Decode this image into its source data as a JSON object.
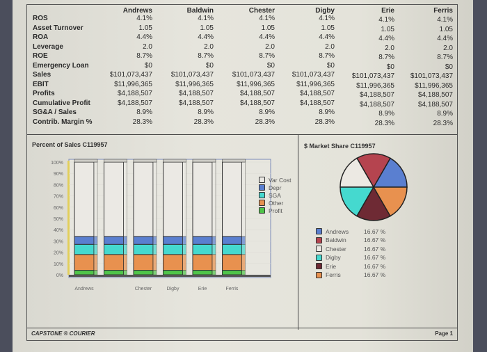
{
  "table": {
    "companies": [
      "Andrews",
      "Baldwin",
      "Chester",
      "Digby",
      "Erie",
      "Ferris"
    ],
    "rows": [
      {
        "label": "ROS",
        "values": [
          "4.1%",
          "4.1%",
          "4.1%",
          "4.1%",
          "4.1%",
          "4.1%"
        ]
      },
      {
        "label": "Asset Turnover",
        "values": [
          "1.05",
          "1.05",
          "1.05",
          "1.05",
          "1.05",
          "1.05"
        ]
      },
      {
        "label": "ROA",
        "values": [
          "4.4%",
          "4.4%",
          "4.4%",
          "4.4%",
          "4.4%",
          "4.4%"
        ]
      },
      {
        "label": "Leverage",
        "values": [
          "2.0",
          "2.0",
          "2.0",
          "2.0",
          "2.0",
          "2.0"
        ]
      },
      {
        "label": "ROE",
        "values": [
          "8.7%",
          "8.7%",
          "8.7%",
          "8.7%",
          "8.7%",
          "8.7%"
        ]
      },
      {
        "label": "Emergency Loan",
        "values": [
          "$0",
          "$0",
          "$0",
          "$0",
          "$0",
          "$0"
        ]
      },
      {
        "label": "Sales",
        "values": [
          "$101,073,437",
          "$101,073,437",
          "$101,073,437",
          "$101,073,437",
          "$101,073,437",
          "$101,073,437"
        ]
      },
      {
        "label": "EBIT",
        "values": [
          "$11,996,365",
          "$11,996,365",
          "$11,996,365",
          "$11,996,365",
          "$11,996,365",
          "$11,996,365"
        ]
      },
      {
        "label": "Profits",
        "values": [
          "$4,188,507",
          "$4,188,507",
          "$4,188,507",
          "$4,188,507",
          "$4,188,507",
          "$4,188,507"
        ]
      },
      {
        "label": "Cumulative Profit",
        "values": [
          "$4,188,507",
          "$4,188,507",
          "$4,188,507",
          "$4,188,507",
          "$4,188,507",
          "$4,188,507"
        ]
      },
      {
        "label": "SG&A / Sales",
        "values": [
          "8.9%",
          "8.9%",
          "8.9%",
          "8.9%",
          "8.9%",
          "8.9%"
        ]
      },
      {
        "label": "Contrib. Margin %",
        "values": [
          "28.3%",
          "28.3%",
          "28.3%",
          "28.3%",
          "28.3%",
          "28.3%"
        ]
      }
    ]
  },
  "chart_data": [
    {
      "type": "bar",
      "stacked": true,
      "title": "Percent of Sales  C119957",
      "categories": [
        "Andrews",
        "Baldwin",
        "Chester",
        "Digby",
        "Erie",
        "Ferris"
      ],
      "tick_labels": [
        "Andrews",
        "",
        "Chester",
        "Digby",
        "Erie",
        "Ferris"
      ],
      "yticks": [
        "0%",
        "10%",
        "20%",
        "30%",
        "40%",
        "50%",
        "60%",
        "70%",
        "80%",
        "90%",
        "100%"
      ],
      "ylim": [
        0,
        100
      ],
      "legend_position": "right",
      "series": [
        {
          "name": "Profit",
          "color": "#4fc44a",
          "values": [
            4,
            4,
            4,
            4,
            4,
            4
          ]
        },
        {
          "name": "Other",
          "color": "#e8914f",
          "values": [
            14,
            14,
            14,
            14,
            14,
            14
          ]
        },
        {
          "name": "SGA",
          "color": "#45d9cf",
          "values": [
            9,
            9,
            9,
            9,
            9,
            9
          ]
        },
        {
          "name": "Depr",
          "color": "#5a7fd0",
          "values": [
            7,
            7,
            7,
            7,
            7,
            7
          ]
        },
        {
          "name": "Var Cost",
          "color": "#ebe9e4",
          "values": [
            66,
            66,
            66,
            66,
            66,
            66
          ]
        }
      ],
      "legend_order": [
        "Var Cost",
        "Depr",
        "SGA",
        "Other",
        "Profit"
      ]
    },
    {
      "type": "pie",
      "title": "$ Market Share  C119957",
      "legend_position": "bottom",
      "slices": [
        {
          "name": "Andrews",
          "value": 16.67,
          "label": "16.67 %",
          "color": "#5a7fd0"
        },
        {
          "name": "Baldwin",
          "value": 16.67,
          "label": "16.67 %",
          "color": "#b5444f"
        },
        {
          "name": "Chester",
          "value": 16.67,
          "label": "16.67 %",
          "color": "#ece9e3"
        },
        {
          "name": "Digby",
          "value": 16.67,
          "label": "16.67 %",
          "color": "#45d9cf"
        },
        {
          "name": "Erie",
          "value": 16.67,
          "label": "16.67 %",
          "color": "#6e2a34"
        },
        {
          "name": "Ferris",
          "value": 16.67,
          "label": "16.67 %",
          "color": "#e8914f"
        }
      ]
    }
  ],
  "footer": {
    "brand": "CAPSTONE ® COURIER",
    "page": "Page 1"
  }
}
